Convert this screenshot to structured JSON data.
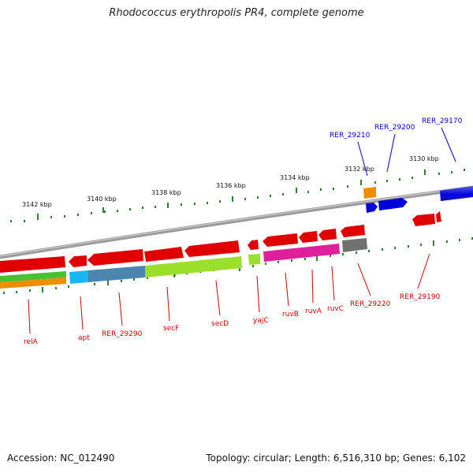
{
  "title": "Rhodococcus erythropolis PR4, complete genome",
  "footer": {
    "accession": "Accession: NC_012490",
    "summary": "Topology: circular; Length: 6,516,310 bp; Genes: 6,102"
  },
  "ruler_labels": [
    "3142 kbp",
    "3140 kbp",
    "3138 kbp",
    "3136 kbp",
    "3134 kbp",
    "3132 kbp",
    "3130 kbp"
  ],
  "forward_labels": [
    "RER_29210",
    "RER_29200",
    "RER_29170"
  ],
  "reverse_labels": [
    "relA",
    "apt",
    "RER_29290",
    "secF",
    "secD",
    "yajC",
    "ruvB",
    "ruvA",
    "ruvC",
    "RER_29220",
    "RER_29190"
  ],
  "colors": {
    "forward_label": "#0000cc",
    "reverse_label": "#cc0000",
    "tick": "#2e7d32",
    "backbone": "#8a8a8a",
    "gene_red": "#e00000",
    "gene_blue": "#0000dd",
    "gene_orange": "#f08c00",
    "gene_green": "#9ae02a",
    "gene_magenta": "#e0209a",
    "gene_gray": "#707070",
    "gene_cyan": "#19b6ef",
    "gene_steel": "#4a86b0"
  }
}
